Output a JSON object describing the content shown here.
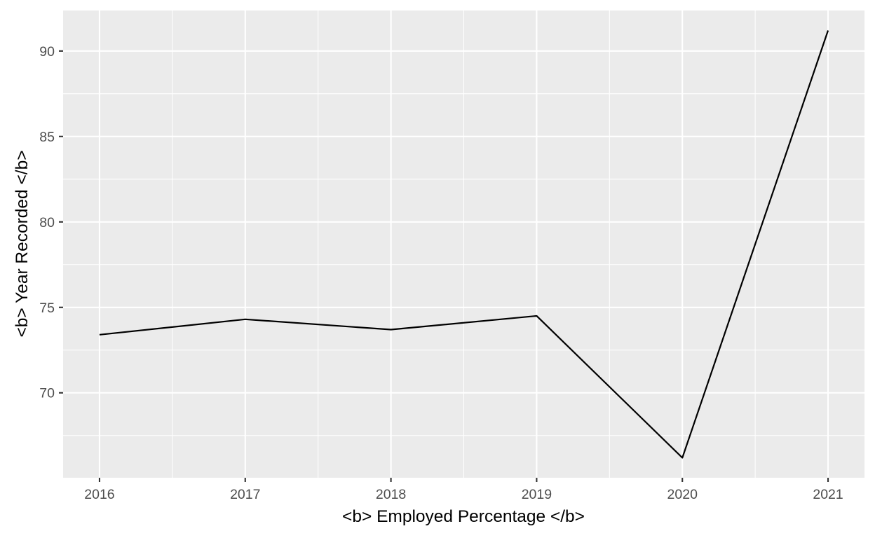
{
  "chart_data": {
    "type": "line",
    "xlabel": "<b> Employed Percentage </b>",
    "ylabel": "<b> Year Recorded </b>",
    "x": [
      2016,
      2017,
      2018,
      2019,
      2020,
      2021
    ],
    "series": [
      {
        "values": [
          73.4,
          74.3,
          73.7,
          74.5,
          66.2,
          91.2
        ]
      }
    ],
    "xlim": [
      2015.75,
      2021.25
    ],
    "ylim": [
      65.03,
      92.37
    ],
    "xticks": [
      2016,
      2017,
      2018,
      2019,
      2020,
      2021
    ],
    "yticks": [
      70,
      75,
      80,
      85,
      90
    ],
    "grid": true,
    "legend": "none",
    "colors": {
      "panel": "#ebebeb",
      "grid": "#ffffff",
      "line": "#000000",
      "tick_text": "#4d4d4d"
    }
  }
}
